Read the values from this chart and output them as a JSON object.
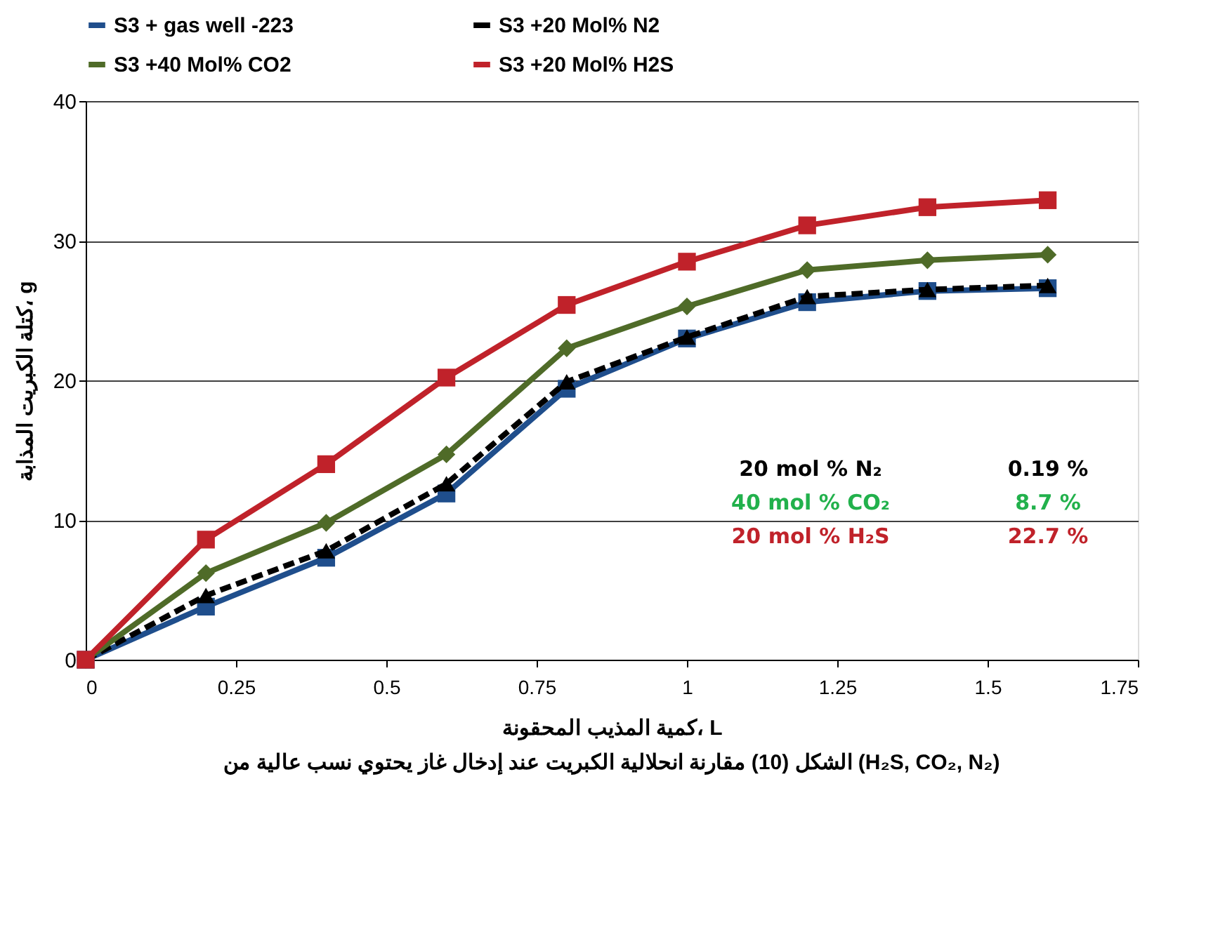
{
  "chart_data": {
    "type": "line",
    "title": "الشكل (10) مقارنة انحلالية الكبريت عند إدخال غاز يحتوي نسب عالية من (H₂S, CO₂, N₂)",
    "xlabel": "كمية المذيب المحقونة، L",
    "ylabel": "كتلة الكبريت المذابة، g",
    "x": [
      0,
      0.2,
      0.4,
      0.6,
      0.8,
      1,
      1.2,
      1.4,
      1.6
    ],
    "xlim": [
      0,
      1.75
    ],
    "xticks": [
      0,
      0.25,
      0.5,
      0.75,
      1,
      1.25,
      1.5,
      1.75
    ],
    "ylim": [
      0,
      40
    ],
    "yticks": [
      0,
      10,
      20,
      30,
      40
    ],
    "grid": "y",
    "legend": "top",
    "series": [
      {
        "name": "S3 + gas well -223",
        "color": "#1f4e8c",
        "marker": "square",
        "line_style": "solid",
        "values": [
          0,
          3.8,
          7.3,
          11.9,
          19.4,
          23.0,
          25.6,
          26.4,
          26.6
        ]
      },
      {
        "name": "S3 +20 Mol% N2",
        "color": "#000000",
        "marker": "triangle",
        "line_style": "dashed",
        "values": [
          0,
          4.6,
          7.8,
          12.6,
          19.9,
          23.1,
          26.0,
          26.5,
          26.8
        ]
      },
      {
        "name": "S3 +40 Mol% CO2",
        "color": "#4f6b28",
        "marker": "diamond",
        "line_style": "solid",
        "values": [
          0,
          6.2,
          9.8,
          14.7,
          22.3,
          25.3,
          27.9,
          28.6,
          29.0
        ]
      },
      {
        "name": "S3 +20 Mol% H2S",
        "color": "#c0222a",
        "marker": "square",
        "line_style": "solid",
        "values": [
          0,
          8.6,
          14.0,
          20.2,
          25.4,
          28.5,
          31.1,
          32.4,
          32.9
        ]
      }
    ],
    "annotations": [
      "20 mol % N₂",
      "40 mol % CO₂",
      "20 mol % H₂S",
      "0.19 %",
      "8.7 %",
      "22.7 %"
    ]
  }
}
